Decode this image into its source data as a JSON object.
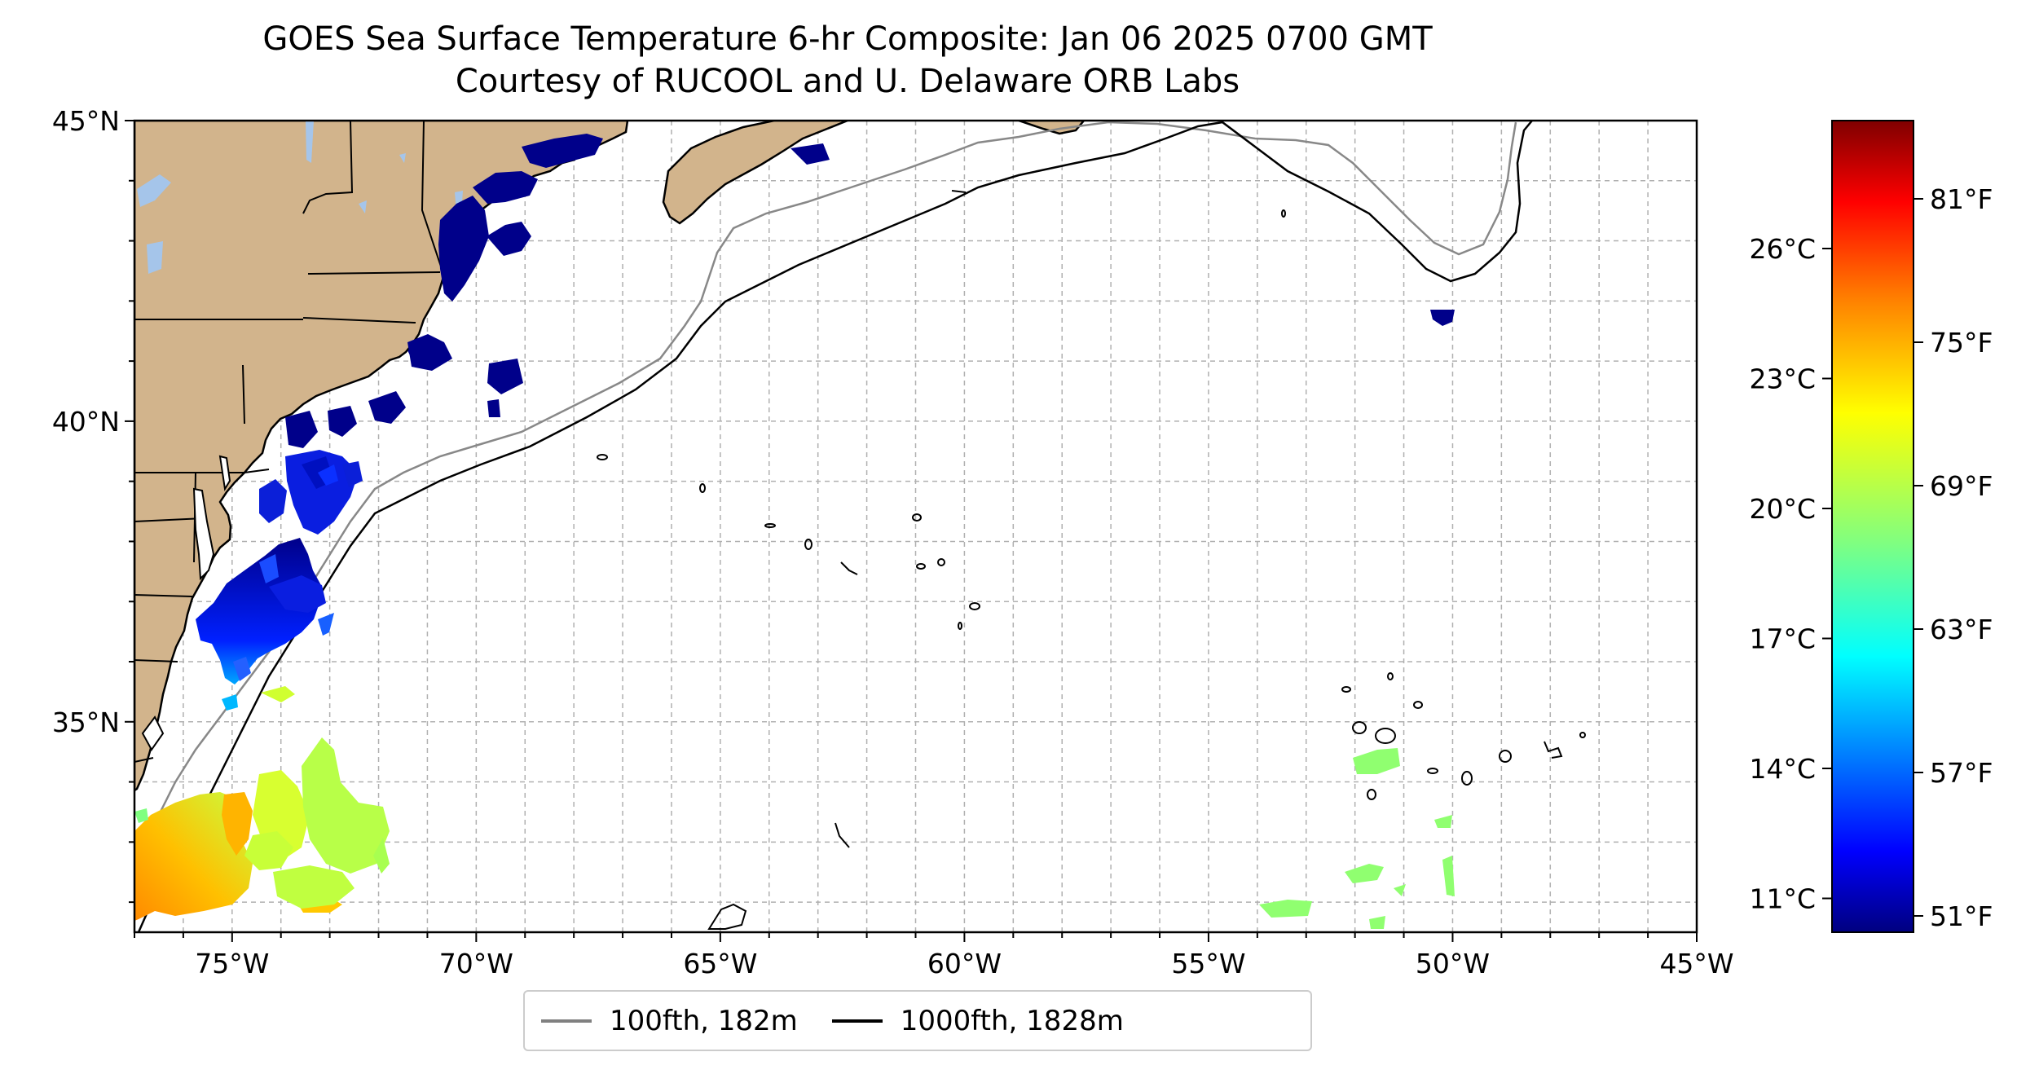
{
  "title": {
    "line1": "GOES Sea Surface Temperature 6-hr Composite: Jan 06 2025 0700 GMT",
    "line2": "Courtesy of RUCOOL and U. Delaware ORB Labs"
  },
  "map": {
    "lon_range": [
      -77,
      -45
    ],
    "lat_range": [
      31.5,
      45
    ],
    "lat_ticks": [
      "45°N",
      "40°N",
      "35°N"
    ],
    "lon_ticks": [
      "75°W",
      "70°W",
      "65°W",
      "60°W",
      "55°W",
      "50°W",
      "45°W"
    ],
    "land_color": "#d2b48c",
    "lake_color": "#a5c5ea"
  },
  "legend": {
    "items": [
      {
        "label": "100fth, 182m",
        "color": "#808080"
      },
      {
        "label": "1000fth, 1828m",
        "color": "#000000"
      }
    ]
  },
  "colorbar": {
    "celsius_ticks": [
      "26°C",
      "23°C",
      "20°C",
      "17°C",
      "14°C",
      "11°C"
    ],
    "fahrenheit_ticks": [
      "81°F",
      "75°F",
      "69°F",
      "63°F",
      "57°F",
      "51°F"
    ],
    "colors": [
      "#7f0000",
      "#ff0000",
      "#ff8000",
      "#ffff00",
      "#80ff80",
      "#00ffff",
      "#0080ff",
      "#0000ff",
      "#00007f"
    ]
  }
}
